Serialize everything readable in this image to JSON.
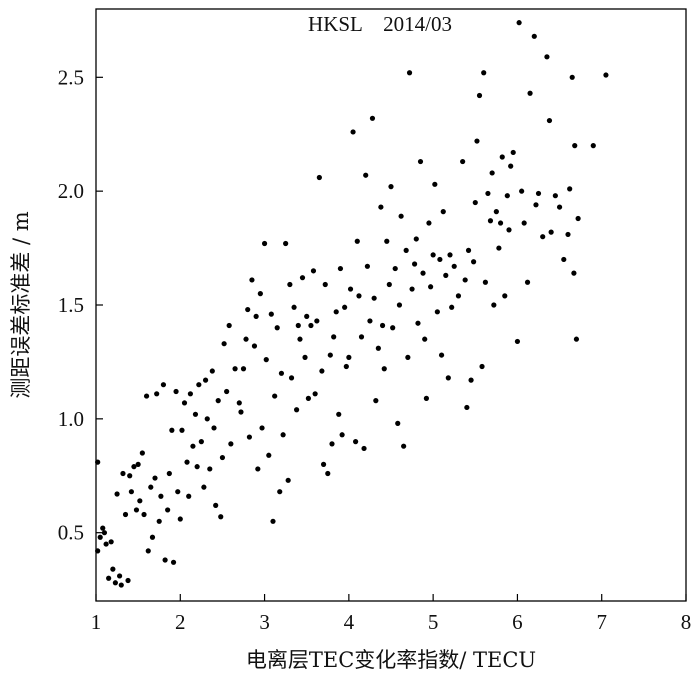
{
  "chart_data": {
    "type": "scatter",
    "title": "HKSL    2014/03",
    "xlabel": "电离层TEC变化率指数/ TECU",
    "ylabel": "测距误差标准差 / m",
    "xlim": [
      1,
      8
    ],
    "ylim": [
      0.2,
      2.8
    ],
    "x_ticks": [
      1,
      2,
      3,
      4,
      5,
      6,
      7,
      8
    ],
    "y_ticks": [
      0.5,
      1.0,
      1.5,
      2.0,
      2.5
    ],
    "x_tick_labels": [
      "1",
      "2",
      "3",
      "4",
      "5",
      "6",
      "7",
      "8"
    ],
    "y_tick_labels": [
      "0.5",
      "1.0",
      "1.5",
      "2.0",
      "2.5"
    ],
    "grid": false,
    "legend": "none",
    "marker_color": "#000000",
    "points": [
      [
        1.02,
        0.81
      ],
      [
        1.02,
        0.42
      ],
      [
        1.05,
        0.48
      ],
      [
        1.08,
        0.52
      ],
      [
        1.1,
        0.5
      ],
      [
        1.12,
        0.45
      ],
      [
        1.15,
        0.3
      ],
      [
        1.18,
        0.46
      ],
      [
        1.2,
        0.34
      ],
      [
        1.23,
        0.28
      ],
      [
        1.25,
        0.67
      ],
      [
        1.28,
        0.31
      ],
      [
        1.3,
        0.27
      ],
      [
        1.32,
        0.76
      ],
      [
        1.35,
        0.58
      ],
      [
        1.38,
        0.29
      ],
      [
        1.4,
        0.75
      ],
      [
        1.42,
        0.68
      ],
      [
        1.45,
        0.79
      ],
      [
        1.48,
        0.6
      ],
      [
        1.5,
        0.8
      ],
      [
        1.52,
        0.64
      ],
      [
        1.55,
        0.85
      ],
      [
        1.57,
        0.58
      ],
      [
        1.6,
        1.1
      ],
      [
        1.62,
        0.42
      ],
      [
        1.65,
        0.7
      ],
      [
        1.67,
        0.48
      ],
      [
        1.7,
        0.74
      ],
      [
        1.72,
        1.11
      ],
      [
        1.75,
        0.55
      ],
      [
        1.77,
        0.66
      ],
      [
        1.8,
        1.15
      ],
      [
        1.82,
        0.38
      ],
      [
        1.85,
        0.6
      ],
      [
        1.87,
        0.76
      ],
      [
        1.9,
        0.95
      ],
      [
        1.92,
        0.37
      ],
      [
        1.95,
        1.12
      ],
      [
        1.97,
        0.68
      ],
      [
        2.0,
        0.56
      ],
      [
        2.02,
        0.95
      ],
      [
        2.05,
        1.07
      ],
      [
        2.08,
        0.81
      ],
      [
        2.1,
        0.66
      ],
      [
        2.12,
        1.11
      ],
      [
        2.15,
        0.88
      ],
      [
        2.18,
        1.02
      ],
      [
        2.2,
        0.79
      ],
      [
        2.22,
        1.15
      ],
      [
        2.25,
        0.9
      ],
      [
        2.28,
        0.7
      ],
      [
        2.3,
        1.17
      ],
      [
        2.32,
        1.0
      ],
      [
        2.35,
        0.78
      ],
      [
        2.38,
        1.21
      ],
      [
        2.4,
        0.96
      ],
      [
        2.42,
        0.62
      ],
      [
        2.45,
        1.08
      ],
      [
        2.48,
        0.57
      ],
      [
        2.5,
        0.83
      ],
      [
        2.52,
        1.33
      ],
      [
        2.55,
        1.12
      ],
      [
        2.58,
        1.41
      ],
      [
        2.6,
        0.89
      ],
      [
        2.65,
        1.22
      ],
      [
        2.7,
        1.07
      ],
      [
        2.72,
        1.03
      ],
      [
        2.75,
        1.22
      ],
      [
        2.78,
        1.35
      ],
      [
        2.8,
        1.48
      ],
      [
        2.82,
        0.92
      ],
      [
        2.85,
        1.61
      ],
      [
        2.88,
        1.32
      ],
      [
        2.9,
        1.45
      ],
      [
        2.92,
        0.78
      ],
      [
        2.95,
        1.55
      ],
      [
        2.97,
        0.96
      ],
      [
        3.0,
        1.77
      ],
      [
        3.02,
        1.26
      ],
      [
        3.05,
        0.84
      ],
      [
        3.08,
        1.46
      ],
      [
        3.1,
        0.55
      ],
      [
        3.12,
        1.1
      ],
      [
        3.15,
        1.4
      ],
      [
        3.18,
        0.68
      ],
      [
        3.2,
        1.2
      ],
      [
        3.22,
        0.93
      ],
      [
        3.25,
        1.77
      ],
      [
        3.28,
        0.73
      ],
      [
        3.3,
        1.59
      ],
      [
        3.32,
        1.18
      ],
      [
        3.35,
        1.49
      ],
      [
        3.38,
        1.04
      ],
      [
        3.4,
        1.41
      ],
      [
        3.42,
        1.35
      ],
      [
        3.45,
        1.62
      ],
      [
        3.48,
        1.27
      ],
      [
        3.5,
        1.45
      ],
      [
        3.52,
        1.09
      ],
      [
        3.55,
        1.41
      ],
      [
        3.58,
        1.65
      ],
      [
        3.6,
        1.11
      ],
      [
        3.62,
        1.43
      ],
      [
        3.65,
        2.06
      ],
      [
        3.68,
        1.21
      ],
      [
        3.7,
        0.8
      ],
      [
        3.72,
        1.59
      ],
      [
        3.75,
        0.76
      ],
      [
        3.78,
        1.28
      ],
      [
        3.8,
        0.89
      ],
      [
        3.82,
        1.36
      ],
      [
        3.85,
        1.47
      ],
      [
        3.88,
        1.02
      ],
      [
        3.9,
        1.66
      ],
      [
        3.92,
        0.93
      ],
      [
        3.95,
        1.49
      ],
      [
        3.97,
        1.23
      ],
      [
        4.0,
        1.27
      ],
      [
        4.02,
        1.57
      ],
      [
        4.05,
        2.26
      ],
      [
        4.08,
        0.9
      ],
      [
        4.1,
        1.78
      ],
      [
        4.12,
        1.54
      ],
      [
        4.15,
        1.36
      ],
      [
        4.18,
        0.87
      ],
      [
        4.2,
        2.07
      ],
      [
        4.22,
        1.67
      ],
      [
        4.25,
        1.43
      ],
      [
        4.28,
        2.32
      ],
      [
        4.3,
        1.53
      ],
      [
        4.32,
        1.08
      ],
      [
        4.35,
        1.31
      ],
      [
        4.38,
        1.93
      ],
      [
        4.4,
        1.41
      ],
      [
        4.42,
        1.22
      ],
      [
        4.45,
        1.78
      ],
      [
        4.48,
        1.59
      ],
      [
        4.5,
        2.02
      ],
      [
        4.52,
        1.4
      ],
      [
        4.55,
        1.66
      ],
      [
        4.58,
        0.98
      ],
      [
        4.6,
        1.5
      ],
      [
        4.62,
        1.89
      ],
      [
        4.65,
        0.88
      ],
      [
        4.68,
        1.74
      ],
      [
        4.7,
        1.27
      ],
      [
        4.72,
        2.52
      ],
      [
        4.75,
        1.57
      ],
      [
        4.78,
        1.68
      ],
      [
        4.8,
        1.79
      ],
      [
        4.82,
        1.42
      ],
      [
        4.85,
        2.13
      ],
      [
        4.88,
        1.64
      ],
      [
        4.9,
        1.35
      ],
      [
        4.92,
        1.09
      ],
      [
        4.95,
        1.86
      ],
      [
        4.97,
        1.58
      ],
      [
        5.0,
        1.72
      ],
      [
        5.02,
        2.03
      ],
      [
        5.05,
        1.47
      ],
      [
        5.08,
        1.7
      ],
      [
        5.1,
        1.28
      ],
      [
        5.12,
        1.91
      ],
      [
        5.15,
        1.63
      ],
      [
        5.18,
        1.18
      ],
      [
        5.2,
        1.72
      ],
      [
        5.22,
        1.49
      ],
      [
        5.25,
        1.67
      ],
      [
        5.3,
        1.54
      ],
      [
        5.35,
        2.13
      ],
      [
        5.38,
        1.61
      ],
      [
        5.4,
        1.05
      ],
      [
        5.42,
        1.74
      ],
      [
        5.45,
        1.17
      ],
      [
        5.48,
        1.69
      ],
      [
        5.5,
        1.95
      ],
      [
        5.52,
        2.22
      ],
      [
        5.55,
        2.42
      ],
      [
        5.58,
        1.23
      ],
      [
        5.6,
        2.52
      ],
      [
        5.62,
        1.6
      ],
      [
        5.65,
        1.99
      ],
      [
        5.68,
        1.87
      ],
      [
        5.7,
        2.08
      ],
      [
        5.72,
        1.5
      ],
      [
        5.75,
        1.91
      ],
      [
        5.78,
        1.75
      ],
      [
        5.8,
        1.86
      ],
      [
        5.82,
        2.15
      ],
      [
        5.85,
        1.54
      ],
      [
        5.88,
        1.98
      ],
      [
        5.9,
        1.83
      ],
      [
        5.92,
        2.11
      ],
      [
        5.95,
        2.17
      ],
      [
        6.0,
        1.34
      ],
      [
        6.02,
        2.74
      ],
      [
        6.05,
        2.0
      ],
      [
        6.08,
        1.86
      ],
      [
        6.12,
        1.6
      ],
      [
        6.15,
        2.43
      ],
      [
        6.2,
        2.68
      ],
      [
        6.22,
        1.94
      ],
      [
        6.25,
        1.99
      ],
      [
        6.3,
        1.8
      ],
      [
        6.35,
        2.59
      ],
      [
        6.38,
        2.31
      ],
      [
        6.4,
        1.82
      ],
      [
        6.45,
        1.98
      ],
      [
        6.5,
        1.93
      ],
      [
        6.55,
        1.7
      ],
      [
        6.6,
        1.81
      ],
      [
        6.62,
        2.01
      ],
      [
        6.65,
        2.5
      ],
      [
        6.67,
        1.64
      ],
      [
        6.68,
        2.2
      ],
      [
        6.7,
        1.35
      ],
      [
        6.72,
        1.88
      ],
      [
        6.9,
        2.2
      ],
      [
        7.05,
        2.51
      ]
    ]
  }
}
